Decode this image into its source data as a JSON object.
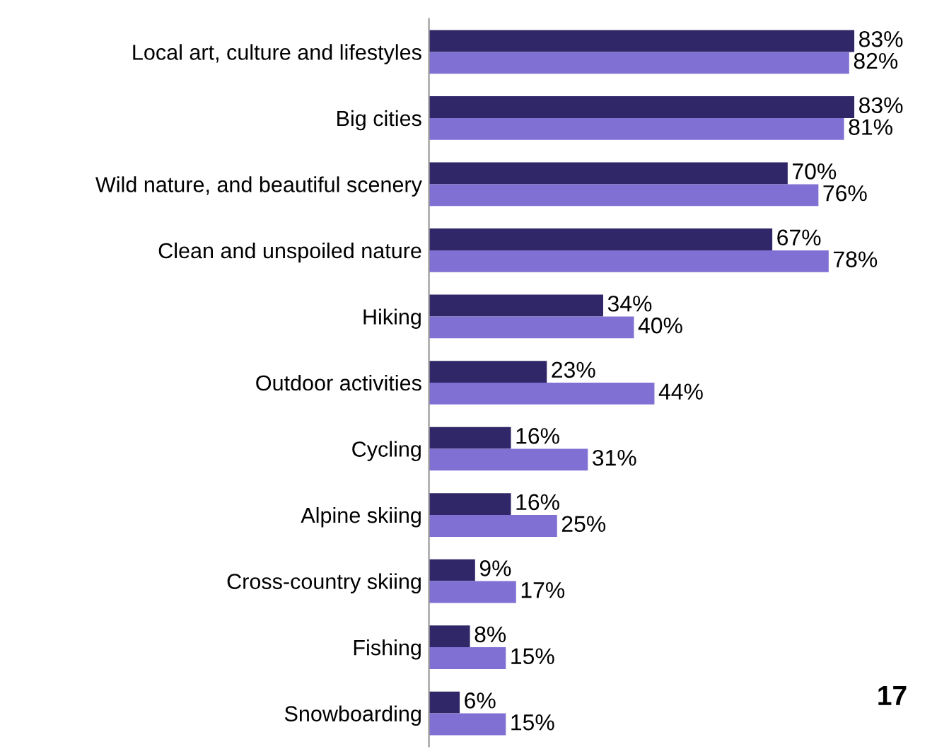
{
  "chart_data": {
    "type": "bar",
    "orientation": "horizontal",
    "categories": [
      "Local art, culture and lifestyles",
      "Big cities",
      "Wild nature, and beautiful scenery",
      "Clean and unspoiled nature",
      "Hiking",
      "Outdoor activities",
      "Cycling",
      "Alpine skiing",
      "Cross-country skiing",
      "Fishing",
      "Snowboarding"
    ],
    "series": [
      {
        "color": "#2f2768",
        "values": [
          83,
          83,
          70,
          67,
          34,
          23,
          16,
          16,
          9,
          8,
          6
        ],
        "value_labels": [
          "83%",
          "83%",
          "70%",
          "67%",
          "34%",
          "23%",
          "16%",
          "16%",
          "9%",
          "8%",
          "6%"
        ]
      },
      {
        "color": "#8070d4",
        "values": [
          82,
          81,
          76,
          78,
          40,
          44,
          31,
          25,
          17,
          15,
          15
        ],
        "value_labels": [
          "82%",
          "81%",
          "76%",
          "78%",
          "40%",
          "44%",
          "31%",
          "25%",
          "17%",
          "15%",
          "15%"
        ]
      }
    ],
    "grid": false,
    "legend": false,
    "tick_labels": "y",
    "annotations": [
      "17"
    ]
  }
}
